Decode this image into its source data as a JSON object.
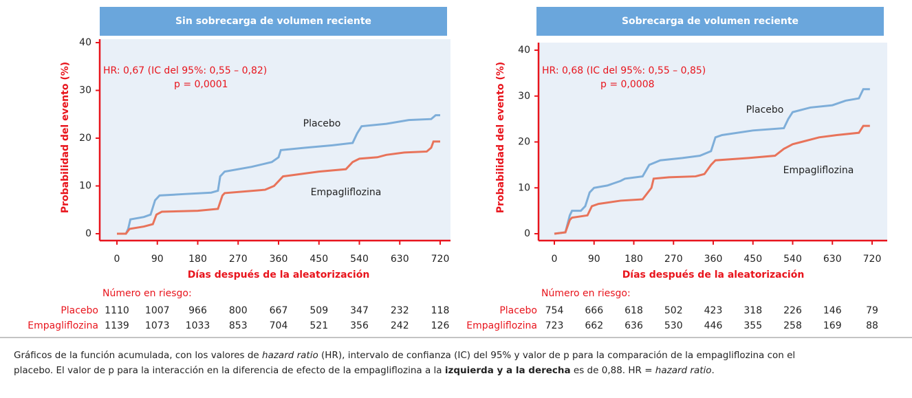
{
  "chart_data": [
    {
      "type": "line",
      "title": "Sin sobrecarga de volumen reciente",
      "x_label": "Días después de la aleatorización",
      "y_label": "Probabilidad del evento (%)",
      "annotations": [
        "HR: 0,67 (IC del 95%: 0,55 – 0,82)",
        "p = 0,0001"
      ],
      "xlim": [
        0,
        720
      ],
      "xticks": [
        0,
        90,
        180,
        270,
        360,
        450,
        540,
        630,
        720
      ],
      "ylim": [
        0,
        40
      ],
      "yticks": [
        0,
        10,
        20,
        30,
        40
      ],
      "at_risk_title": "Número en riesgo:",
      "series": [
        {
          "name": "Placebo",
          "color": "#7eaed9",
          "x": [
            0,
            20,
            25,
            30,
            60,
            75,
            85,
            95,
            150,
            210,
            225,
            230,
            240,
            300,
            345,
            360,
            365,
            420,
            480,
            525,
            535,
            545,
            600,
            650,
            700,
            710,
            720
          ],
          "values": [
            0,
            0,
            1,
            3,
            3.5,
            4,
            7,
            8,
            8.3,
            8.6,
            9,
            12,
            13,
            14,
            15,
            16,
            17.5,
            18,
            18.5,
            19,
            21,
            22.5,
            23,
            23.8,
            24,
            24.8,
            24.8
          ],
          "at_risk": [
            1110,
            1007,
            966,
            800,
            667,
            509,
            347,
            232,
            118
          ]
        },
        {
          "name": "Empagliflozina",
          "color": "#e8735a",
          "x": [
            0,
            20,
            28,
            60,
            80,
            88,
            100,
            180,
            225,
            235,
            240,
            330,
            350,
            360,
            370,
            450,
            510,
            525,
            540,
            580,
            600,
            640,
            690,
            700,
            705,
            720
          ],
          "values": [
            0,
            0,
            1,
            1.5,
            2,
            4,
            4.6,
            4.8,
            5.2,
            8,
            8.5,
            9.2,
            10,
            11,
            12,
            13,
            13.5,
            15,
            15.7,
            16,
            16.5,
            17,
            17.2,
            18,
            19.3,
            19.3
          ],
          "at_risk": [
            1139,
            1073,
            1033,
            853,
            704,
            521,
            356,
            242,
            126
          ]
        }
      ]
    },
    {
      "type": "line",
      "title": "Sobrecarga de volumen reciente",
      "x_label": "Días después de la aleatorización",
      "y_label": "Probabilidad del evento (%)",
      "annotations": [
        "HR: 0,68 (IC del 95%: 0,55 – 0,85)",
        "p = 0,0008"
      ],
      "xlim": [
        0,
        720
      ],
      "xticks": [
        0,
        90,
        180,
        270,
        360,
        450,
        540,
        630,
        720
      ],
      "ylim": [
        0,
        40
      ],
      "yticks": [
        0,
        10,
        20,
        30,
        40
      ],
      "at_risk_title": "Número en riesgo:",
      "series": [
        {
          "name": "Placebo",
          "color": "#7eaed9",
          "x": [
            0,
            25,
            35,
            40,
            60,
            70,
            80,
            90,
            120,
            150,
            160,
            200,
            215,
            240,
            290,
            330,
            355,
            365,
            380,
            450,
            520,
            530,
            540,
            580,
            630,
            660,
            690,
            700,
            715
          ],
          "values": [
            0,
            0.3,
            4,
            5,
            5,
            6,
            9,
            10,
            10.5,
            11.5,
            12,
            12.5,
            15,
            16,
            16.5,
            17,
            18,
            21,
            21.5,
            22.5,
            23,
            25,
            26.5,
            27.5,
            28,
            29,
            29.5,
            31.5,
            31.5
          ],
          "at_risk": [
            754,
            666,
            618,
            502,
            423,
            318,
            226,
            146,
            79
          ]
        },
        {
          "name": "Empagliflozina",
          "color": "#e8735a",
          "x": [
            0,
            25,
            35,
            40,
            75,
            85,
            100,
            150,
            200,
            220,
            225,
            260,
            320,
            340,
            355,
            365,
            440,
            500,
            520,
            540,
            560,
            600,
            640,
            690,
            700,
            715
          ],
          "values": [
            0,
            0.3,
            3,
            3.5,
            4,
            6,
            6.5,
            7.2,
            7.5,
            10,
            12,
            12.3,
            12.5,
            13,
            15,
            16,
            16.5,
            17,
            18.5,
            19.5,
            20,
            21,
            21.5,
            22,
            23.5,
            23.5
          ],
          "at_risk": [
            723,
            662,
            636,
            530,
            446,
            355,
            258,
            169,
            88
          ]
        }
      ]
    }
  ],
  "caption": [
    "Gráficos de la función acumulada, con los valores de ",
    "hazard ratio",
    " (HR), intervalo de confianza (IC) del 95% y valor de p para la comparación de la empagliflozina con el",
    "placebo. El valor de p para la interacción en la diferencia de efecto de la empagliflozina a la ",
    "izquierda y a la derecha",
    " es de 0,88. HR = ",
    "hazard ratio",
    "."
  ]
}
